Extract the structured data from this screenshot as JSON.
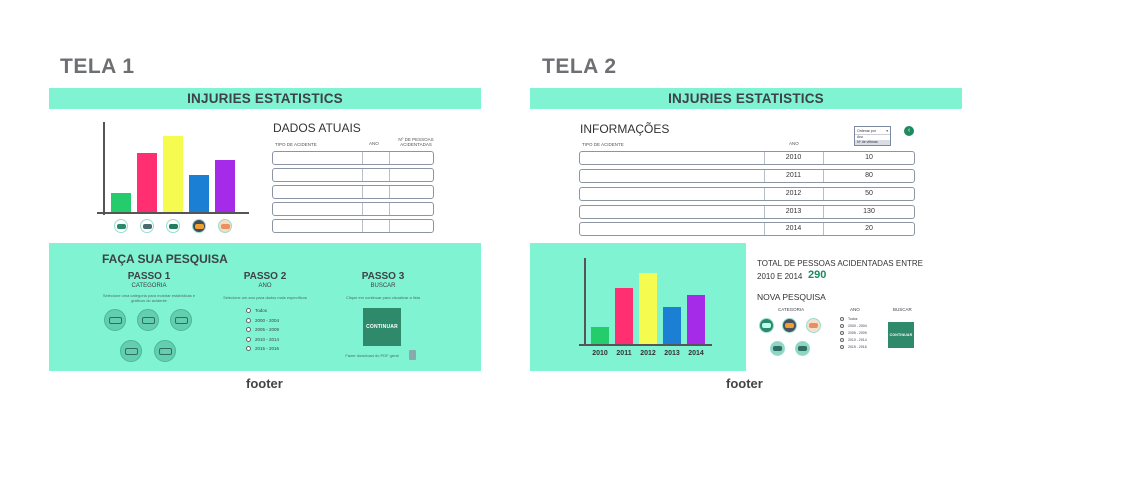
{
  "colors": {
    "mint": "#7ff3d2",
    "accent_green": "#2f8a6c",
    "bar_green": "#24cc6c",
    "bar_pink": "#ff2f72",
    "bar_yellow": "#f5fb4f",
    "bar_blue": "#1b80d4",
    "bar_purple": "#a62be9"
  },
  "tela1": {
    "label": "TELA 1",
    "banner": "INJURIES ESTATISTICS",
    "chart": {
      "values": [
        19,
        59,
        76,
        37,
        52
      ],
      "colors": [
        "#24cc6c",
        "#ff2f72",
        "#f5fb4f",
        "#1b80d4",
        "#a62be9"
      ],
      "icons": [
        "bicycle-icon",
        "car-icon",
        "truck-icon",
        "bus-icon",
        "motorcycle-icon"
      ]
    },
    "dados_title": "DADOS ATUAIS",
    "col_tipo": "TIPO DE ACIDENTE",
    "col_ano": "ANO",
    "col_pessoas_1": "Nº DE PESSOAS",
    "col_pessoas_2": "ACIDENTADAS",
    "rows": 5,
    "search_title": "FAÇA SUA PESQUISA",
    "passo1": {
      "title": "PASSO 1",
      "sub": "CATEGORIA",
      "desc_1": "Selecione uma categoria para mostrar estatísticas e",
      "desc_2": "gráficos do acidente"
    },
    "passo2": {
      "title": "PASSO 2",
      "sub": "ANO",
      "desc": "Selecione um ano para dados mais específicos",
      "options": [
        "Todos",
        "2000 - 2004",
        "2005 - 2009",
        "2010 - 2014",
        "2015 - 2016"
      ]
    },
    "passo3": {
      "title": "PASSO 3",
      "sub": "BUSCAR",
      "desc": "Clique em continuar para visualizar a lista",
      "button": "CONTINUAR",
      "download": "Fazer download do PDF geral"
    },
    "footer": "footer"
  },
  "tela2": {
    "label": "TELA 2",
    "banner": "INJURIES ESTATISTICS",
    "info_title": "INFORMAÇÕES",
    "col_tipo": "TIPO DE ACIDENTE",
    "col_ano": "ANO",
    "dropdown": {
      "head": "Ordenar por",
      "options": [
        "Ano",
        "Nº de vítimas"
      ]
    },
    "rows": [
      {
        "ano": "2010",
        "valor": "10"
      },
      {
        "ano": "2011",
        "valor": "80"
      },
      {
        "ano": "2012",
        "valor": "50"
      },
      {
        "ano": "2013",
        "valor": "130"
      },
      {
        "ano": "2014",
        "valor": "20"
      }
    ],
    "chart": {
      "years": [
        "2010",
        "2011",
        "2012",
        "2013",
        "2014"
      ],
      "values": [
        17,
        55,
        70,
        36,
        48
      ],
      "colors": [
        "#24cc6c",
        "#ff2f72",
        "#f5fb4f",
        "#1b80d4",
        "#a62be9"
      ]
    },
    "total_line1": "TOTAL DE PESSOAS ACIDENTADAS ENTRE",
    "total_line2": "2010 E 2014",
    "total_value": "290",
    "nova_title": "NOVA PESQUISA",
    "categoria": "CATEGORIA",
    "ano": "ANO",
    "buscar": "BUSCAR",
    "year_options": [
      "Todos",
      "2000 - 2004",
      "2005 - 2009",
      "2010 - 2014",
      "2015 - 2016"
    ],
    "button": "CONTINUAR",
    "footer": "footer"
  }
}
